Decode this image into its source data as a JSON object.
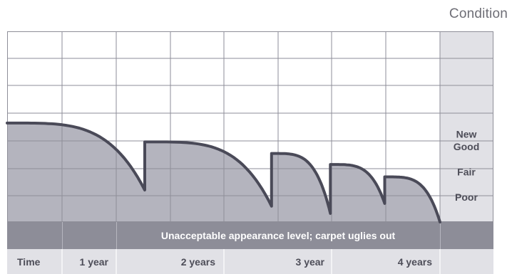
{
  "title": "Condition",
  "chart_data": {
    "type": "area",
    "title": "Condition",
    "x_unit": "years",
    "xlim": [
      0,
      4.78
    ],
    "y_levels": [
      "Poor",
      "Fair",
      "Good",
      "New"
    ],
    "condition_labels": [
      {
        "label": "New",
        "level": 3.27
      },
      {
        "label": "Good",
        "level": 2.8
      },
      {
        "label": "Fair",
        "level": 1.86
      },
      {
        "label": "Poor",
        "level": 0.93
      }
    ],
    "unacceptable_band": {
      "label": "Unacceptable appearance level; carpet uglies out",
      "level_max": 0
    },
    "time_labels": [
      {
        "label": "Time",
        "x": null
      },
      {
        "label": "1 year",
        "x": 1
      },
      {
        "label": "2 years",
        "x": 2
      },
      {
        "label": "3 year",
        "x": 3
      },
      {
        "label": "4 years",
        "x": 4
      }
    ],
    "series": [
      {
        "type": "decay-with-maintenance",
        "segments": [
          {
            "start_x": 0,
            "start_level": 3.68,
            "end_x": 1.52,
            "end_level": 1.19
          },
          {
            "start_x": 1.52,
            "start_level": 2.98,
            "end_x": 2.92,
            "end_level": 0.59
          },
          {
            "start_x": 2.92,
            "start_level": 2.55,
            "end_x": 3.57,
            "end_level": 0.32
          },
          {
            "start_x": 3.57,
            "start_level": 2.14,
            "end_x": 4.17,
            "end_level": 0.69
          },
          {
            "start_x": 4.17,
            "start_level": 1.68,
            "end_x": 4.78,
            "end_level": 0
          }
        ]
      }
    ]
  }
}
